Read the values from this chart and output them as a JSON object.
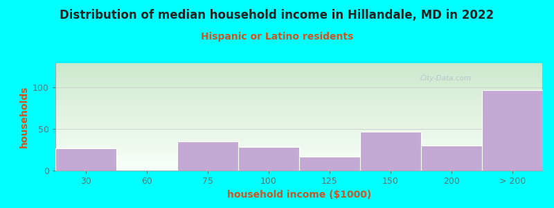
{
  "title": "Distribution of median household income in Hillandale, MD in 2022",
  "subtitle": "Hispanic or Latino residents",
  "xlabel": "household income ($1000)",
  "ylabel": "households",
  "background_color": "#00FFFF",
  "plot_bg_top_color": "#ddeedd",
  "plot_bg_bottom_color": "#f8fff8",
  "bar_color": "#c4a8d4",
  "bar_edge_color": "#ffffff",
  "title_color": "#222222",
  "subtitle_color": "#cc5522",
  "axis_label_color": "#cc5522",
  "tick_color": "#557777",
  "watermark_text": "City-Data.com",
  "watermark_color": "#aabbcc",
  "categories": [
    "30",
    "60",
    "75",
    "100",
    "125",
    "150",
    "200",
    "> 200"
  ],
  "values": [
    27,
    0,
    35,
    28,
    17,
    47,
    30,
    97
  ],
  "ylim": [
    0,
    130
  ],
  "yticks": [
    0,
    50,
    100
  ],
  "title_fontsize": 12,
  "subtitle_fontsize": 10,
  "label_fontsize": 10,
  "tick_fontsize": 9
}
